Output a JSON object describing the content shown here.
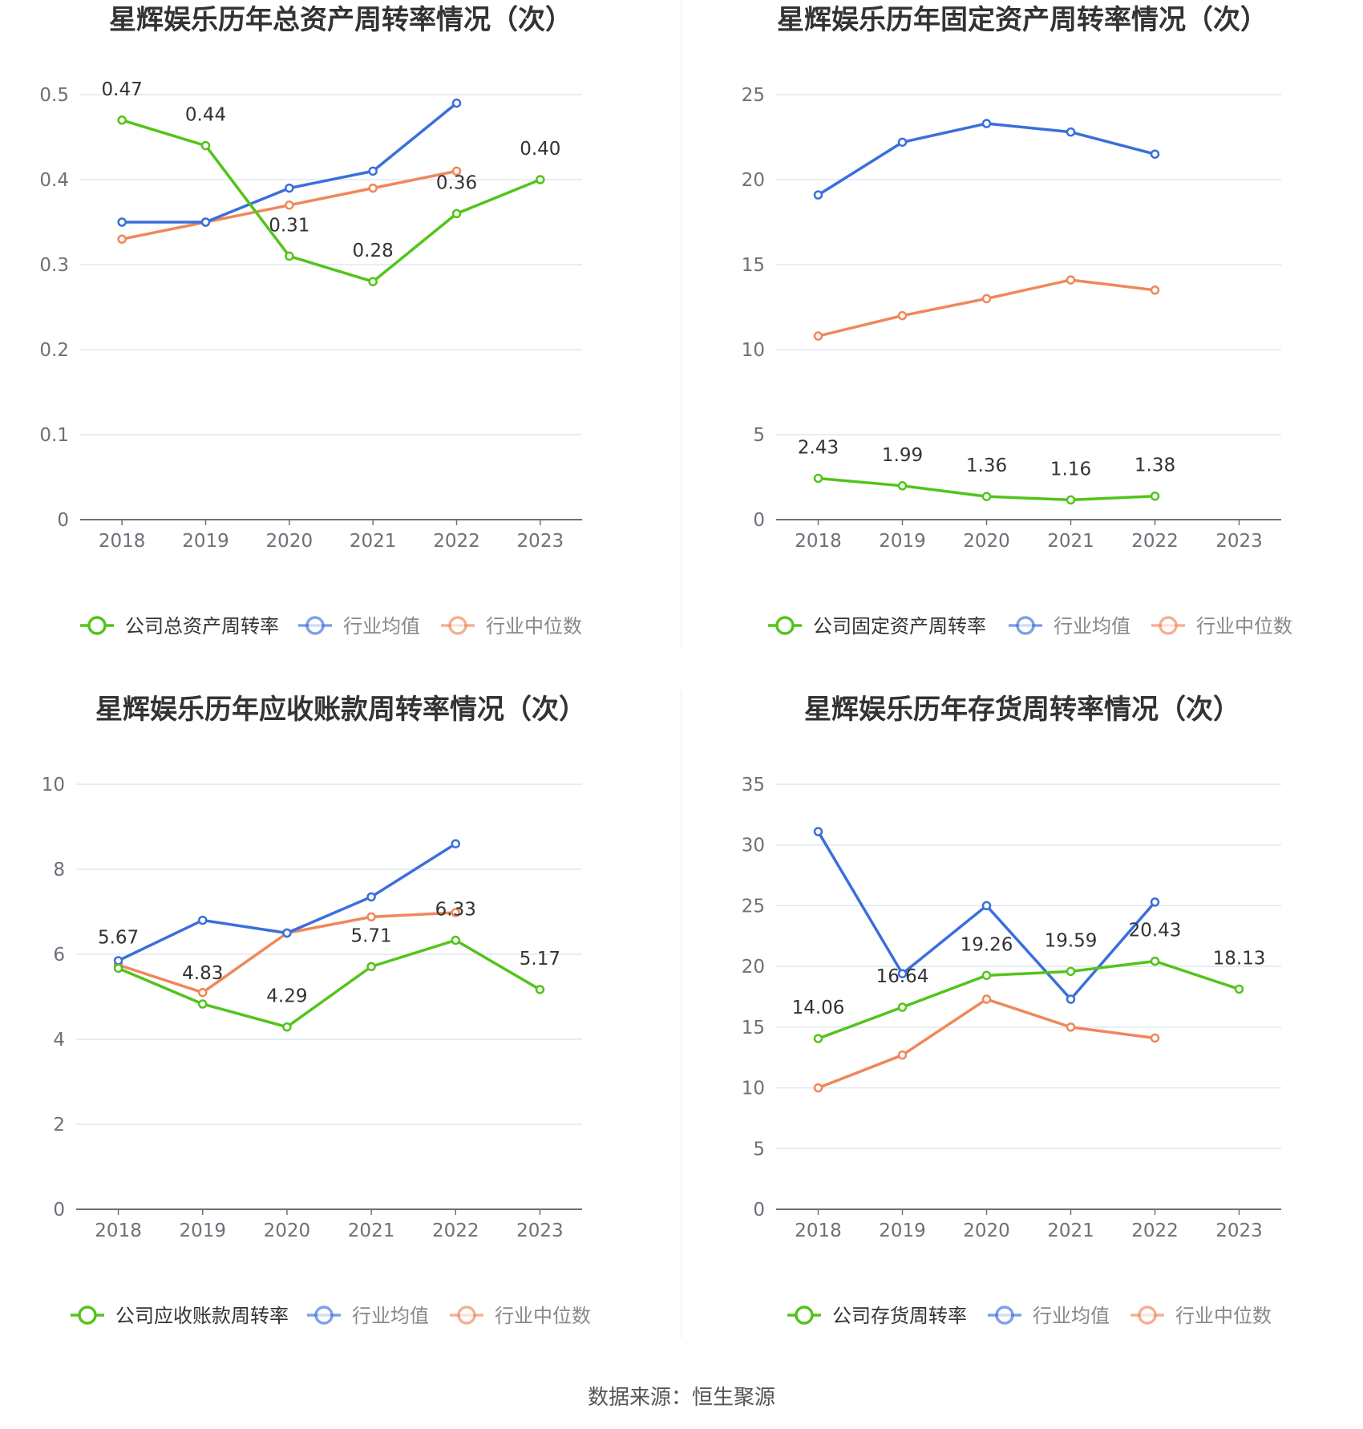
{
  "source_text": "数据来源：恒生聚源",
  "colors": {
    "company": "#52c41a",
    "avg": "#3a6fdb",
    "median": "#f0875a",
    "grid": "#e0e6f1",
    "axis": "#6e7079"
  },
  "chart_data": [
    {
      "type": "line",
      "title": "星辉娱乐历年总资产周转率情况（次）",
      "categories": [
        "2018",
        "2019",
        "2020",
        "2021",
        "2022",
        "2023"
      ],
      "yticks": [
        "0",
        "0.1",
        "0.2",
        "0.3",
        "0.4",
        "0.5"
      ],
      "ylim": [
        0,
        0.5
      ],
      "legend_position": "bottom",
      "series": [
        {
          "name": "公司总资产周转率",
          "role": "company",
          "values": [
            0.47,
            0.44,
            0.31,
            0.28,
            0.36,
            0.4
          ],
          "labels": [
            "0.47",
            "0.44",
            "0.31",
            "0.28",
            "0.36",
            "0.40"
          ]
        },
        {
          "name": "行业均值",
          "role": "avg",
          "values": [
            0.35,
            0.35,
            0.39,
            0.41,
            0.49,
            null
          ]
        },
        {
          "name": "行业中位数",
          "role": "median",
          "values": [
            0.33,
            0.35,
            0.37,
            0.39,
            0.41,
            null
          ]
        }
      ]
    },
    {
      "type": "line",
      "title": "星辉娱乐历年固定资产周转率情况（次）",
      "categories": [
        "2018",
        "2019",
        "2020",
        "2021",
        "2022",
        "2023"
      ],
      "yticks": [
        "0",
        "5",
        "10",
        "15",
        "20",
        "25"
      ],
      "ylim": [
        0,
        25
      ],
      "legend_position": "bottom",
      "series": [
        {
          "name": "公司固定资产周转率",
          "role": "company",
          "values": [
            2.43,
            1.99,
            1.36,
            1.16,
            1.38,
            null
          ],
          "labels": [
            "2.43",
            "1.99",
            "1.36",
            "1.16",
            "1.38",
            ""
          ]
        },
        {
          "name": "行业均值",
          "role": "avg",
          "values": [
            19.1,
            22.2,
            23.3,
            22.8,
            21.5,
            null
          ]
        },
        {
          "name": "行业中位数",
          "role": "median",
          "values": [
            10.8,
            12.0,
            13.0,
            14.1,
            13.5,
            null
          ]
        }
      ]
    },
    {
      "type": "line",
      "title": "星辉娱乐历年应收账款周转率情况（次）",
      "categories": [
        "2018",
        "2019",
        "2020",
        "2021",
        "2022",
        "2023"
      ],
      "yticks": [
        "0",
        "2",
        "4",
        "6",
        "8",
        "10"
      ],
      "ylim": [
        0,
        10
      ],
      "legend_position": "bottom",
      "series": [
        {
          "name": "公司应收账款周转率",
          "role": "company",
          "values": [
            5.67,
            4.83,
            4.29,
            5.71,
            6.33,
            5.17
          ],
          "labels": [
            "5.67",
            "4.83",
            "4.29",
            "5.71",
            "6.33",
            "5.17"
          ]
        },
        {
          "name": "行业均值",
          "role": "avg",
          "values": [
            5.85,
            6.8,
            6.5,
            7.35,
            8.6,
            null
          ]
        },
        {
          "name": "行业中位数",
          "role": "median",
          "values": [
            5.75,
            5.1,
            6.5,
            6.88,
            6.98,
            null
          ]
        }
      ]
    },
    {
      "type": "line",
      "title": "星辉娱乐历年存货周转率情况（次）",
      "categories": [
        "2018",
        "2019",
        "2020",
        "2021",
        "2022",
        "2023"
      ],
      "yticks": [
        "0",
        "5",
        "10",
        "15",
        "20",
        "25",
        "30",
        "35"
      ],
      "ylim": [
        0,
        35
      ],
      "legend_position": "bottom",
      "series": [
        {
          "name": "公司存货周转率",
          "role": "company",
          "values": [
            14.06,
            16.64,
            19.26,
            19.59,
            20.43,
            18.13
          ],
          "labels": [
            "14.06",
            "16.64",
            "19.26",
            "19.59",
            "20.43",
            "18.13"
          ]
        },
        {
          "name": "行业均值",
          "role": "avg",
          "values": [
            31.1,
            19.4,
            25.0,
            17.3,
            25.3,
            null
          ]
        },
        {
          "name": "行业中位数",
          "role": "median",
          "values": [
            10.0,
            12.7,
            17.3,
            15.0,
            14.1,
            null
          ]
        }
      ]
    }
  ]
}
